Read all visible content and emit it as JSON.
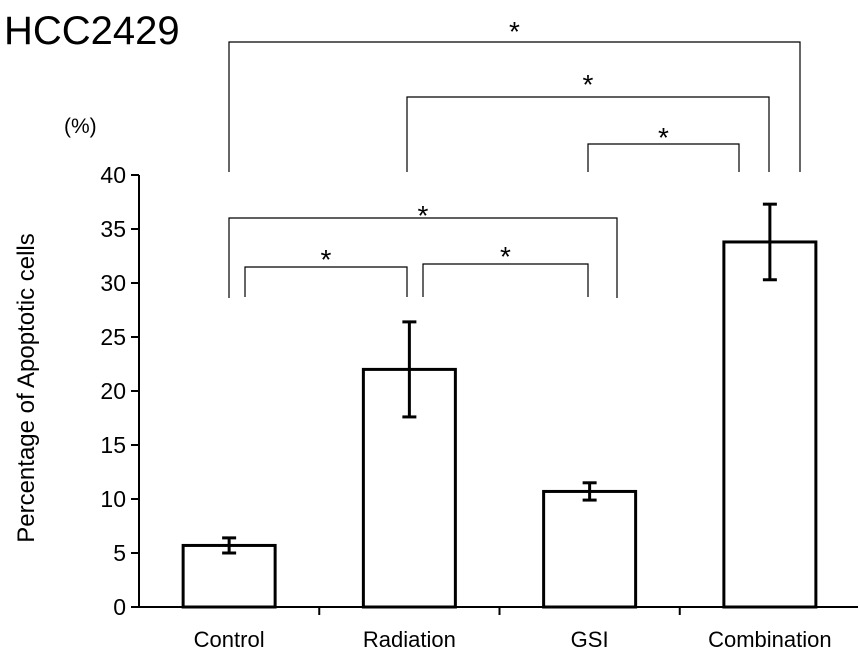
{
  "chart_data": {
    "type": "bar",
    "title": "HCC2429",
    "unit_label": "(%)",
    "ylabel": "Percentage of Apoptotic cells",
    "xlabel": "",
    "categories": [
      "Control",
      "Radiation",
      "GSI",
      "Combination"
    ],
    "values": [
      5.7,
      22.0,
      10.7,
      33.8
    ],
    "error_bars": [
      0.7,
      4.4,
      0.8,
      3.5
    ],
    "ylim": [
      0,
      40
    ],
    "y_ticks": [
      0,
      5,
      10,
      15,
      20,
      25,
      30,
      35,
      40
    ],
    "colors": {
      "bar_fill": "#ffffff",
      "bar_stroke": "#000000"
    },
    "significance_marker": "*",
    "comparisons": [
      {
        "from": "Control",
        "to": "Radiation",
        "label": "*"
      },
      {
        "from": "Radiation",
        "to": "GSI",
        "label": "*"
      },
      {
        "from": "Control",
        "to": "GSI",
        "label": "*"
      },
      {
        "from": "GSI",
        "to": "Combination",
        "label": "*"
      },
      {
        "from": "Radiation",
        "to": "Combination",
        "label": "*"
      },
      {
        "from": "Control",
        "to": "Combination",
        "label": "*"
      }
    ],
    "grid": false,
    "legend": "none"
  }
}
